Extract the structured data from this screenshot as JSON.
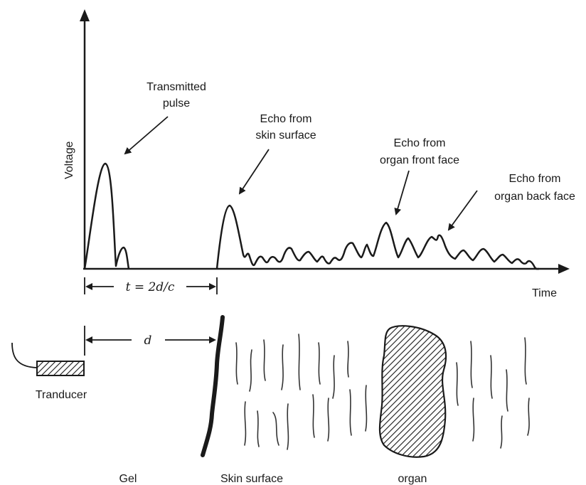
{
  "axes": {
    "y_label": "Voltage",
    "x_label": "Time"
  },
  "annotations": {
    "transmitted": [
      "Transmitted",
      "pulse"
    ],
    "skin_echo": [
      "Echo from",
      "skin surface"
    ],
    "front_echo": [
      "Echo from",
      "organ front face"
    ],
    "back_echo": [
      "Echo from",
      "organ back face"
    ]
  },
  "formula": "t = 2d/c",
  "distance_symbol": "d",
  "labels": {
    "transducer": "Tranducer",
    "gel": "Gel",
    "skin": "Skin surface",
    "organ": "organ"
  },
  "colors": {
    "ink": "#1a1a1a",
    "background": "#ffffff"
  }
}
